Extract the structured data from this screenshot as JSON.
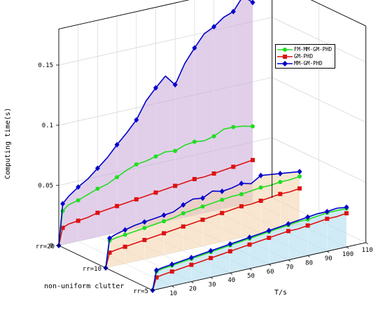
{
  "chart_data": {
    "type": "line",
    "projection": "3d",
    "xlabel": "T/s",
    "ylabel": "non-uniform clutter",
    "zlabel": "Computing time(s)",
    "x_ticks": [
      10,
      20,
      30,
      40,
      50,
      60,
      70,
      80,
      90,
      100,
      110
    ],
    "y_ticks": [
      "rr=5",
      "rr=10",
      "rr=20"
    ],
    "z_ticks": [
      "0",
      "0.05",
      "0.1",
      "0.15"
    ],
    "xlim": [
      0,
      110
    ],
    "zlim": [
      0,
      0.18
    ],
    "legend_position": "top-right",
    "series": [
      {
        "name": "FM-MM-GM-PHD",
        "color": "#22dd22",
        "marker": "circle"
      },
      {
        "name": "GM-PHD",
        "color": "#dd1111",
        "marker": "square"
      },
      {
        "name": "MM-GM-PHD",
        "color": "#0000cc",
        "marker": "diamond"
      }
    ],
    "groups": [
      {
        "label": "rr=20",
        "fill": "#c8a8d8",
        "x": [
          0,
          2,
          5,
          10,
          15,
          20,
          25,
          30,
          35,
          40,
          45,
          50,
          55,
          60,
          65,
          70,
          75,
          80,
          85,
          90,
          95,
          100
        ],
        "mm": [
          0,
          0.034,
          0.039,
          0.045,
          0.05,
          0.057,
          0.064,
          0.073,
          0.081,
          0.09,
          0.104,
          0.113,
          0.121,
          0.112,
          0.128,
          0.139,
          0.149,
          0.153,
          0.159,
          0.162,
          0.173,
          0.166
        ],
        "fm": [
          0,
          0.028,
          0.032,
          0.034,
          0.037,
          0.04,
          0.042,
          0.046,
          0.05,
          0.053,
          0.054,
          0.056,
          0.058,
          0.057,
          0.06,
          0.061,
          0.06,
          0.062,
          0.066,
          0.066,
          0.065,
          0.063
        ],
        "gm": [
          0,
          0.014,
          0.016,
          0.017,
          0.018,
          0.02,
          0.021,
          0.022,
          0.023,
          0.024,
          0.025,
          0.026,
          0.027,
          0.028,
          0.029,
          0.03,
          0.03,
          0.031,
          0.032,
          0.033,
          0.034,
          0.035
        ]
      },
      {
        "label": "rr=10",
        "fill": "#f2d2aa",
        "x": [
          0,
          2,
          5,
          10,
          15,
          20,
          25,
          30,
          35,
          40,
          45,
          50,
          55,
          60,
          65,
          70,
          75,
          80,
          85,
          90,
          95,
          100
        ],
        "mm": [
          0,
          0.024,
          0.026,
          0.028,
          0.03,
          0.031,
          0.032,
          0.033,
          0.034,
          0.038,
          0.041,
          0.04,
          0.044,
          0.042,
          0.043,
          0.045,
          0.043,
          0.048,
          0.047,
          0.046,
          0.045,
          0.044
        ],
        "fm": [
          0,
          0.022,
          0.023,
          0.024,
          0.025,
          0.026,
          0.027,
          0.028,
          0.029,
          0.031,
          0.032,
          0.033,
          0.034,
          0.035,
          0.036,
          0.036,
          0.037,
          0.038,
          0.038,
          0.039,
          0.039,
          0.04
        ],
        "gm": [
          0,
          0.012,
          0.013,
          0.014,
          0.015,
          0.016,
          0.017,
          0.018,
          0.019,
          0.02,
          0.021,
          0.022,
          0.023,
          0.024,
          0.025,
          0.026,
          0.026,
          0.027,
          0.028,
          0.029,
          0.029,
          0.03
        ]
      },
      {
        "label": "rr=5",
        "fill": "#a9d9ee",
        "x": [
          0,
          2,
          5,
          10,
          15,
          20,
          25,
          30,
          35,
          40,
          45,
          50,
          55,
          60,
          65,
          70,
          75,
          80,
          85,
          90,
          95,
          100
        ],
        "mm": [
          0,
          0.016,
          0.017,
          0.018,
          0.019,
          0.02,
          0.021,
          0.022,
          0.023,
          0.024,
          0.025,
          0.026,
          0.027,
          0.028,
          0.029,
          0.03,
          0.031,
          0.032,
          0.033,
          0.033,
          0.034,
          0.033
        ],
        "fm": [
          0,
          0.015,
          0.016,
          0.017,
          0.018,
          0.019,
          0.02,
          0.021,
          0.022,
          0.023,
          0.024,
          0.025,
          0.026,
          0.027,
          0.028,
          0.029,
          0.03,
          0.03,
          0.031,
          0.032,
          0.032,
          0.032
        ],
        "gm": [
          0,
          0.01,
          0.011,
          0.012,
          0.013,
          0.014,
          0.015,
          0.016,
          0.017,
          0.018,
          0.019,
          0.02,
          0.021,
          0.022,
          0.023,
          0.024,
          0.024,
          0.025,
          0.026,
          0.027,
          0.027,
          0.028
        ]
      }
    ]
  }
}
